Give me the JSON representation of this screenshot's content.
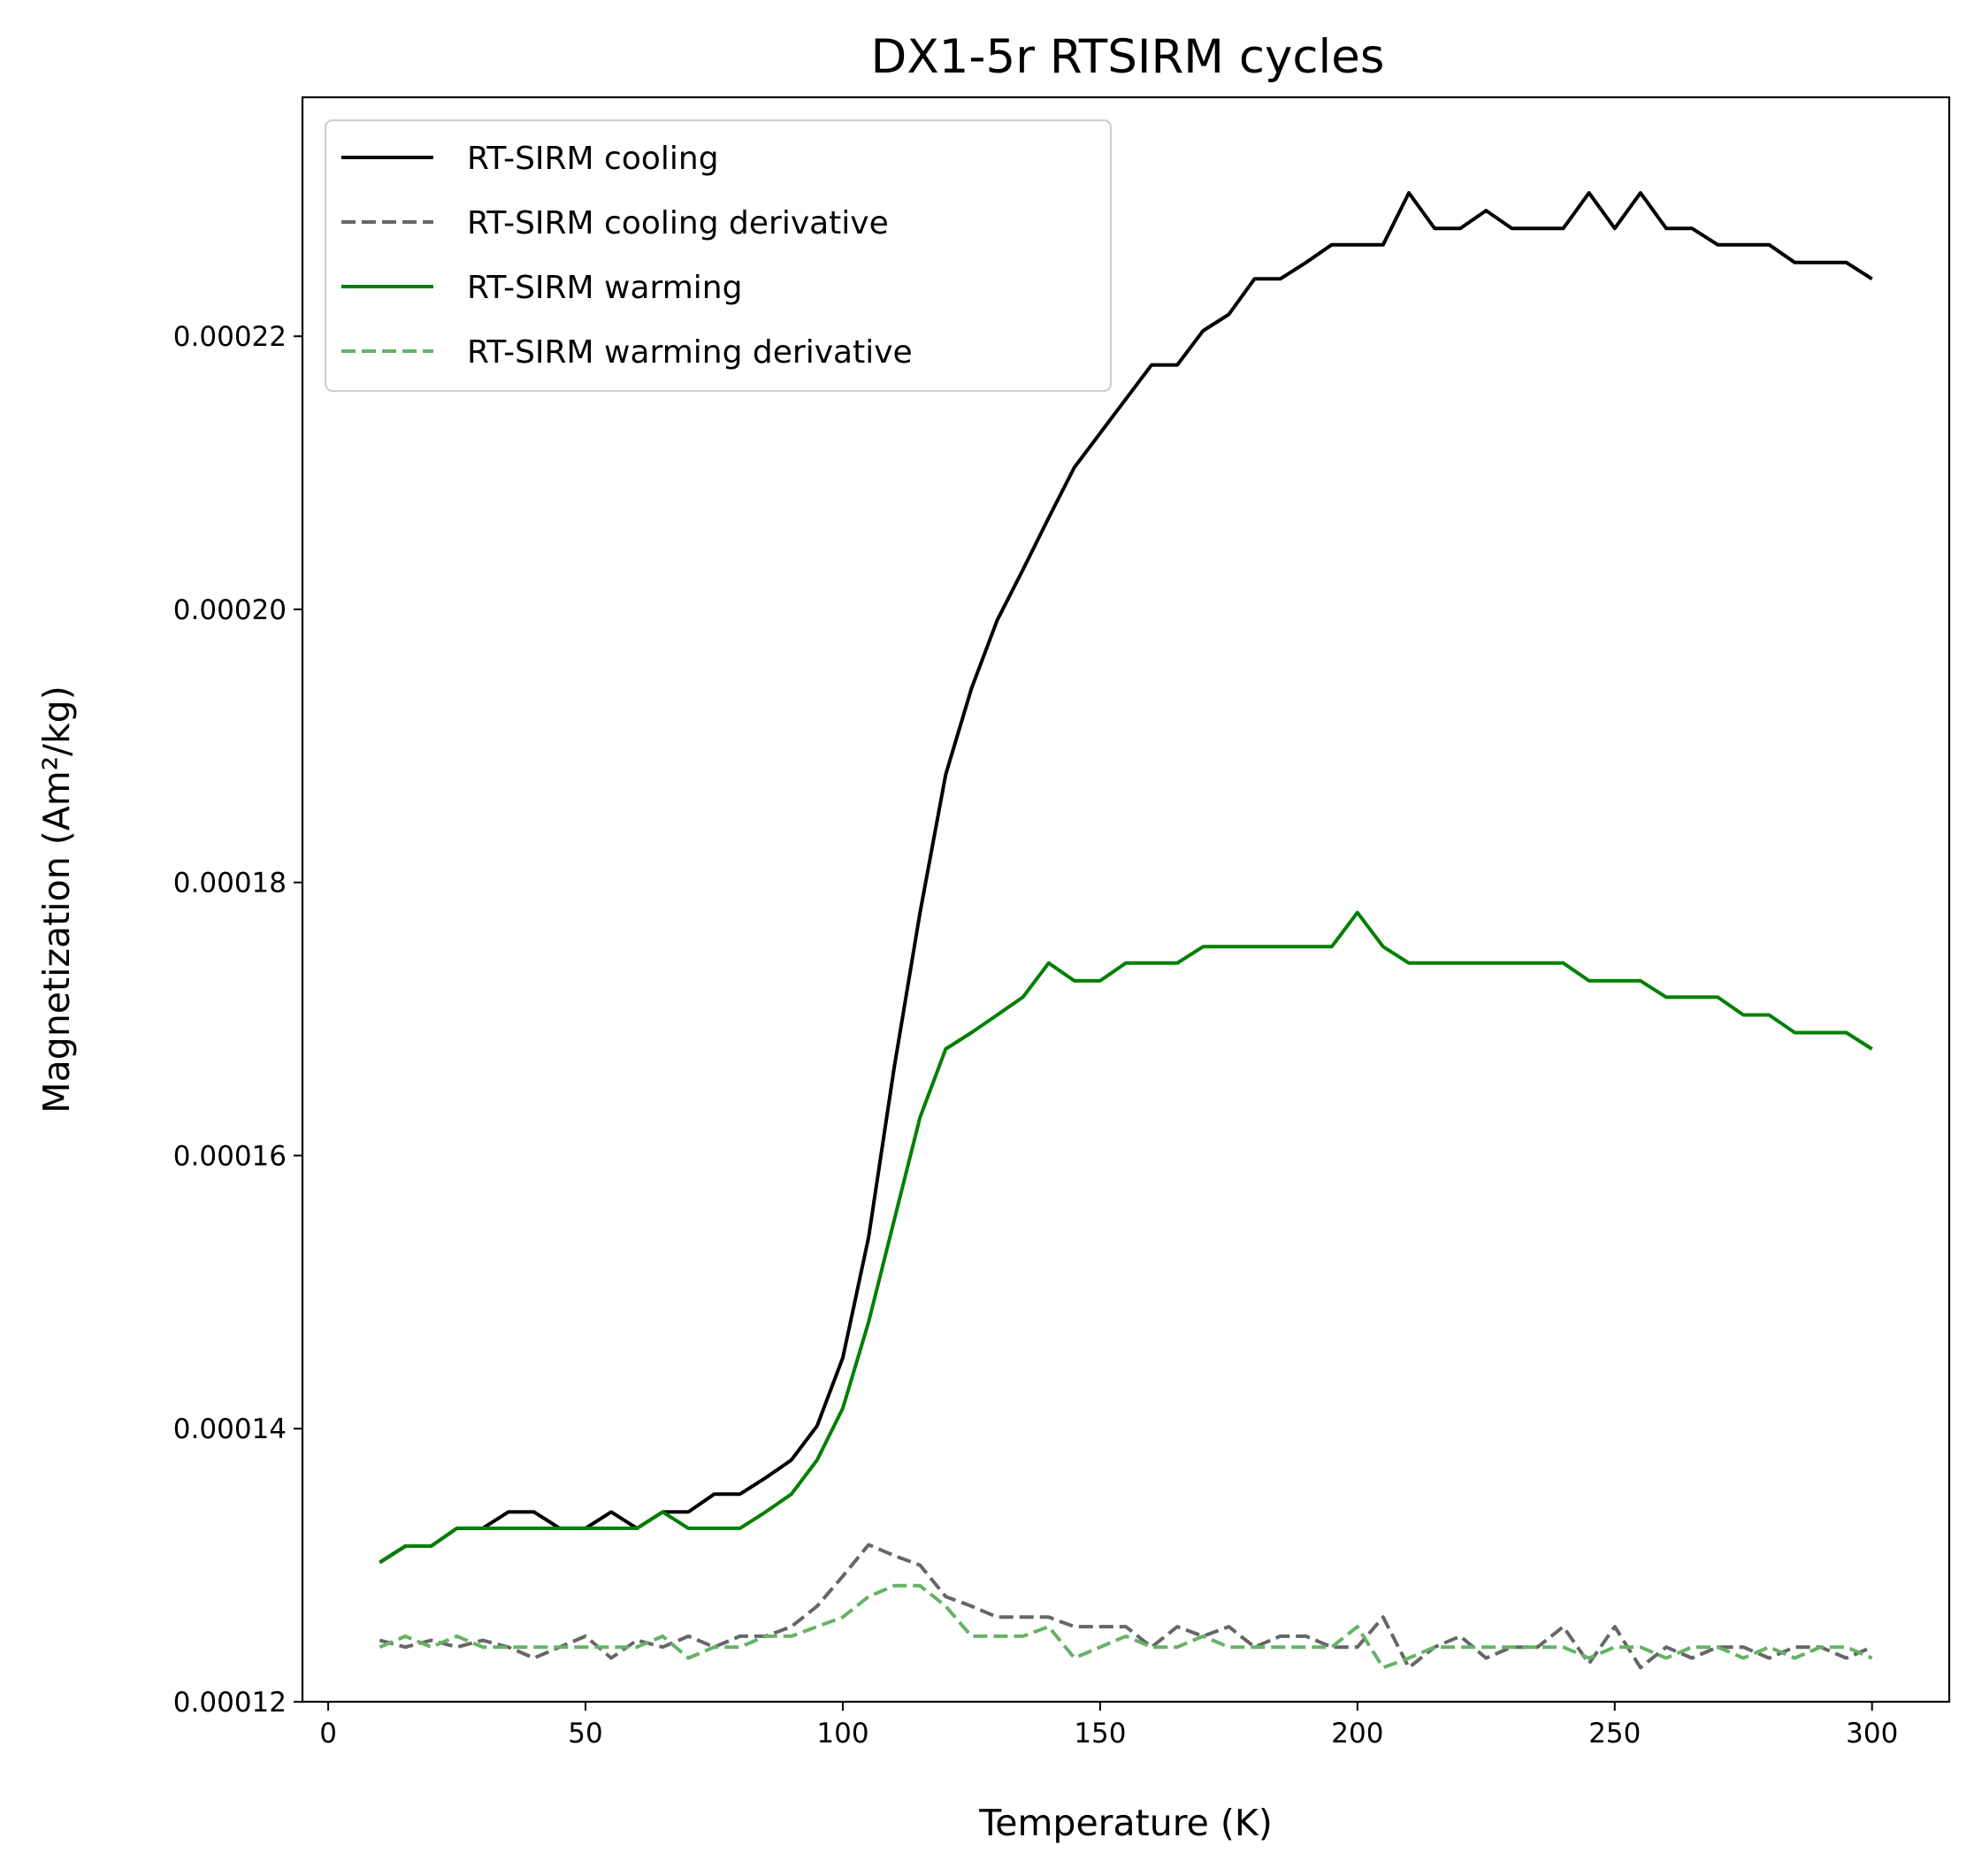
{
  "chart_data": {
    "type": "line",
    "title": "DX1-5r RTSIRM cycles",
    "xlabel": "Temperature (K)",
    "ylabel": "Magnetization (Am²/kg)",
    "xlim": [
      -5,
      315
    ],
    "ylim": [
      0.00012,
      0.0002375
    ],
    "xticks": [
      0,
      50,
      100,
      150,
      200,
      250,
      300
    ],
    "xtick_labels": [
      "0",
      "50",
      "100",
      "150",
      "200",
      "250",
      "300"
    ],
    "yticks": [
      0.00012,
      0.00014,
      0.00016,
      0.00018,
      0.0002,
      0.00022
    ],
    "ytick_labels": [
      "0.00012",
      "0.00014",
      "0.00016",
      "0.00018",
      "0.00020",
      "0.00022"
    ],
    "grid": false,
    "legend_position": "top-left",
    "x": [
      10,
      15,
      20,
      25,
      30,
      35,
      40,
      45,
      50,
      55,
      60,
      65,
      70,
      75,
      80,
      85,
      90,
      95,
      100,
      105,
      110,
      115,
      120,
      125,
      130,
      135,
      140,
      145,
      150,
      155,
      160,
      165,
      170,
      175,
      180,
      185,
      190,
      195,
      200,
      205,
      210,
      215,
      220,
      225,
      230,
      235,
      240,
      245,
      250,
      255,
      260,
      265,
      270,
      275,
      280,
      285,
      290,
      295,
      300
    ],
    "series": [
      {
        "name": "RT-SIRM cooling",
        "color": "#000000",
        "dash": "solid",
        "values": [
          0.0001302,
          0.0001314,
          0.0001314,
          0.0001327,
          0.0001327,
          0.0001339,
          0.0001339,
          0.0001327,
          0.0001327,
          0.0001339,
          0.0001327,
          0.0001339,
          0.0001339,
          0.0001352,
          0.0001352,
          0.0001364,
          0.0001377,
          0.0001402,
          0.0001452,
          0.000154,
          0.0001665,
          0.0001778,
          0.0001879,
          0.0001942,
          0.0001992,
          0.0002029,
          0.0002067,
          0.0002104,
          0.0002129,
          0.0002154,
          0.0002179,
          0.0002179,
          0.0002204,
          0.0002216,
          0.0002242,
          0.0002242,
          0.0002254,
          0.0002267,
          0.0002267,
          0.0002267,
          0.0002305,
          0.0002279,
          0.0002279,
          0.0002292,
          0.0002279,
          0.0002279,
          0.0002279,
          0.0002305,
          0.0002279,
          0.0002305,
          0.0002279,
          0.0002279,
          0.0002267,
          0.0002267,
          0.0002267,
          0.0002254,
          0.0002254,
          0.0002254,
          0.0002242
        ]
      },
      {
        "name": "RT-SIRM cooling derivative",
        "color": "#666666",
        "dash": "dashed",
        "values": [
          0.0001245,
          0.000124,
          0.0001245,
          0.000124,
          0.0001245,
          0.000124,
          0.0001232,
          0.000124,
          0.0001248,
          0.0001232,
          0.0001245,
          0.000124,
          0.0001248,
          0.000124,
          0.0001248,
          0.0001248,
          0.0001255,
          0.000127,
          0.0001292,
          0.0001315,
          0.0001307,
          0.00013,
          0.0001277,
          0.000127,
          0.0001262,
          0.0001262,
          0.0001262,
          0.0001255,
          0.0001255,
          0.0001255,
          0.000124,
          0.0001255,
          0.0001248,
          0.0001255,
          0.000124,
          0.0001248,
          0.0001248,
          0.000124,
          0.000124,
          0.0001262,
          0.0001225,
          0.000124,
          0.0001248,
          0.0001232,
          0.000124,
          0.000124,
          0.0001255,
          0.0001228,
          0.0001255,
          0.0001225,
          0.000124,
          0.0001232,
          0.000124,
          0.000124,
          0.0001232,
          0.000124,
          0.000124,
          0.0001232,
          0.000124
        ]
      },
      {
        "name": "RT-SIRM warming",
        "color": "#008000",
        "dash": "solid",
        "values": [
          0.0001302,
          0.0001314,
          0.0001314,
          0.0001327,
          0.0001327,
          0.0001327,
          0.0001327,
          0.0001327,
          0.0001327,
          0.0001327,
          0.0001327,
          0.0001339,
          0.0001327,
          0.0001327,
          0.0001327,
          0.0001339,
          0.0001352,
          0.0001377,
          0.0001415,
          0.0001478,
          0.0001553,
          0.0001628,
          0.0001678,
          0.000169,
          0.0001703,
          0.0001716,
          0.0001741,
          0.0001728,
          0.0001728,
          0.0001741,
          0.0001741,
          0.0001741,
          0.0001753,
          0.0001753,
          0.0001753,
          0.0001753,
          0.0001753,
          0.0001753,
          0.0001778,
          0.0001753,
          0.0001741,
          0.0001741,
          0.0001741,
          0.0001741,
          0.0001741,
          0.0001741,
          0.0001741,
          0.0001728,
          0.0001728,
          0.0001728,
          0.0001716,
          0.0001716,
          0.0001716,
          0.0001703,
          0.0001703,
          0.000169,
          0.000169,
          0.000169,
          0.0001678
        ]
      },
      {
        "name": "RT-SIRM warming derivative",
        "color": "#66b266",
        "dash": "dashed",
        "values": [
          0.000124,
          0.0001248,
          0.000124,
          0.0001248,
          0.000124,
          0.000124,
          0.000124,
          0.000124,
          0.000124,
          0.000124,
          0.000124,
          0.0001248,
          0.0001232,
          0.000124,
          0.000124,
          0.0001248,
          0.0001248,
          0.0001255,
          0.0001262,
          0.0001277,
          0.0001285,
          0.0001285,
          0.000127,
          0.0001248,
          0.0001248,
          0.0001248,
          0.0001255,
          0.0001232,
          0.000124,
          0.0001248,
          0.000124,
          0.000124,
          0.0001248,
          0.000124,
          0.000124,
          0.000124,
          0.000124,
          0.000124,
          0.0001255,
          0.0001225,
          0.0001232,
          0.000124,
          0.000124,
          0.000124,
          0.000124,
          0.000124,
          0.000124,
          0.0001232,
          0.000124,
          0.000124,
          0.0001232,
          0.000124,
          0.000124,
          0.0001232,
          0.000124,
          0.0001232,
          0.000124,
          0.000124,
          0.0001232
        ]
      }
    ]
  }
}
